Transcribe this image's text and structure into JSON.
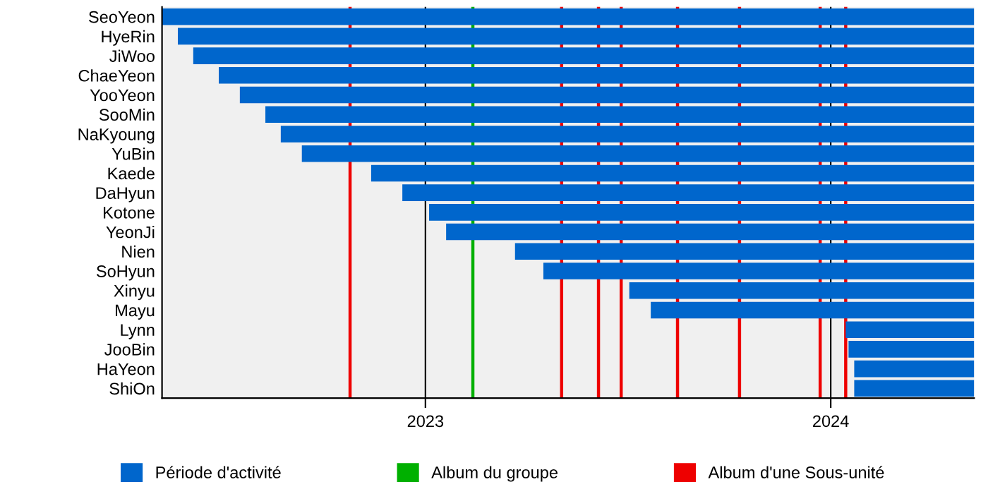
{
  "chart_data": {
    "type": "bar",
    "orientation": "horizontal",
    "categories": [
      "SeoYeon",
      "HyeRin",
      "JiWoo",
      "ChaeYeon",
      "YooYeon",
      "SooMin",
      "NaKyoung",
      "YuBin",
      "Kaede",
      "DaHyun",
      "Kotone",
      "YeonJi",
      "Nien",
      "SoHyun",
      "Xinyu",
      "Mayu",
      "Lynn",
      "JooBin",
      "HaYeon",
      "ShiOn"
    ],
    "series": [
      {
        "name": "Période d'activité",
        "color": "#0066cc",
        "base": [
          2022.35,
          2022.389,
          2022.427,
          2022.49,
          2022.542,
          2022.605,
          2022.643,
          2022.695,
          2022.866,
          2022.943,
          2023.009,
          2023.051,
          2023.221,
          2023.291,
          2023.503,
          2023.556,
          2024.037,
          2024.044,
          2024.058,
          2024.058
        ],
        "values": [
          2.004,
          1.965,
          1.927,
          1.864,
          1.812,
          1.749,
          1.711,
          1.659,
          1.488,
          1.411,
          1.345,
          1.303,
          1.133,
          1.063,
          0.851,
          0.798,
          0.317,
          0.31,
          0.296,
          0.296
        ]
      }
    ],
    "ref_lines": [
      {
        "axis": "x",
        "value": 2023.117,
        "label": "Album du groupe",
        "color": "#00b000"
      },
      {
        "axis": "x",
        "value": 2022.814,
        "label": "Album d'une Sous-unité",
        "color": "#ee0000"
      },
      {
        "axis": "x",
        "value": 2023.336,
        "color": "#ee0000"
      },
      {
        "axis": "x",
        "value": 2023.427,
        "color": "#ee0000"
      },
      {
        "axis": "x",
        "value": 2023.483,
        "color": "#ee0000"
      },
      {
        "axis": "x",
        "value": 2023.622,
        "color": "#ee0000"
      },
      {
        "axis": "x",
        "value": 2023.775,
        "color": "#ee0000"
      },
      {
        "axis": "x",
        "value": 2023.974,
        "color": "#ee0000"
      },
      {
        "axis": "x",
        "value": 2024.037,
        "color": "#ee0000"
      }
    ],
    "xlim": [
      2022.35,
      2024.354
    ],
    "xticks": [
      2023,
      2024
    ],
    "grid": "x",
    "legend": "bottom"
  }
}
